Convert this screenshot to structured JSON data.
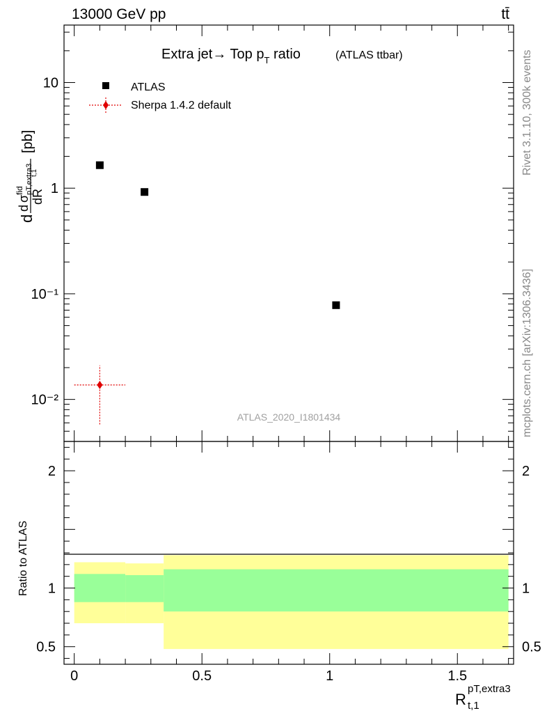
{
  "header": {
    "energy_label": "13000 GeV pp",
    "process_label": "tt̄",
    "rivet_label": "Rivet 3.1.10,  300k events",
    "mcplots_label": "mcplots.cern.ch [arXiv:1306.3436]",
    "analysis_label": "ATLAS_2020_I1801434"
  },
  "chart_data": [
    {
      "type": "scatter",
      "panel": "main",
      "title": "Extra jet→ Top p",
      "title_sub": "T",
      "title_tail": " ratio",
      "title_small": "(ATLAS ttbar)",
      "ylabel": "dσ/dR [pb]",
      "xlim": [
        -0.04,
        1.72
      ],
      "ylim": [
        0.004,
        35
      ],
      "yscale": "log",
      "ytick_labels": [
        "10⁻²",
        "10⁻¹",
        "1",
        "10"
      ],
      "legend_position": "top-left",
      "series": [
        {
          "name": "ATLAS",
          "color": "#000000",
          "marker": "square",
          "points": [
            {
              "x": 0.1,
              "y": 1.65
            },
            {
              "x": 0.275,
              "y": 0.92
            },
            {
              "x": 1.025,
              "y": 0.078
            }
          ]
        },
        {
          "name": "Sherpa 1.4.2 default",
          "color": "#e00000",
          "marker": "diamond",
          "points": [
            {
              "x": 0.1,
              "y": 0.0137,
              "xerr": [
                0.0,
                0.2
              ],
              "yerr": [
                0.0058,
                0.021
              ]
            }
          ]
        }
      ]
    },
    {
      "type": "area",
      "panel": "ratio",
      "ylabel": "Ratio to ATLAS",
      "xlabel": "R",
      "xlabel_sup": "pT,extra3",
      "xlabel_sub": "t,1",
      "xlim": [
        -0.04,
        1.72
      ],
      "ylim": [
        0.35,
        2.25
      ],
      "xtick_labels": [
        "0",
        "0.5",
        "1",
        "1.5"
      ],
      "ytick_labels": [
        "0.5",
        "1",
        "2"
      ],
      "reference_line": 1.0,
      "bands": [
        {
          "x": [
            0.0,
            0.2
          ],
          "stat": [
            0.88,
            1.12
          ],
          "total": [
            0.7,
            1.22
          ]
        },
        {
          "x": [
            0.2,
            0.35
          ],
          "stat": [
            0.88,
            1.11
          ],
          "total": [
            0.7,
            1.21
          ]
        },
        {
          "x": [
            0.35,
            1.7
          ],
          "stat": [
            0.8,
            1.16
          ],
          "total": [
            0.48,
            1.28
          ]
        }
      ],
      "band_colors": {
        "stat": "#99ff99",
        "total": "#ffff99"
      }
    }
  ]
}
